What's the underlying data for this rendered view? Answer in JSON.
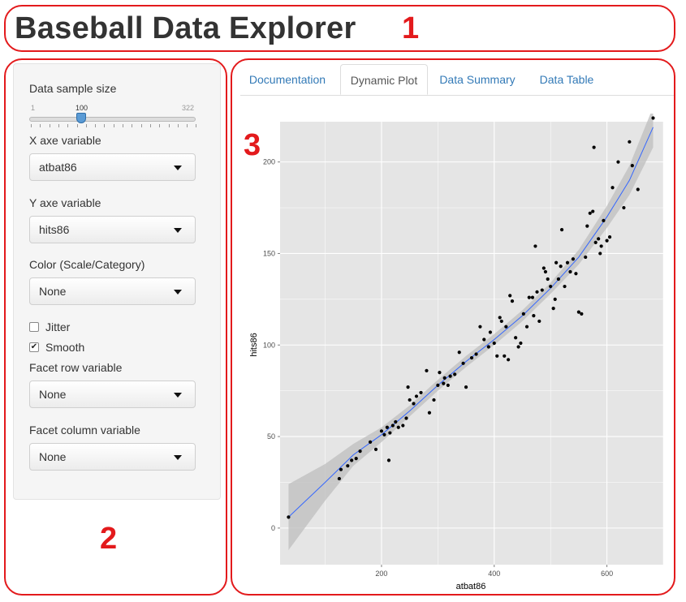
{
  "app": {
    "title": "Baseball Data Explorer"
  },
  "annotations": {
    "a1": "1",
    "a2": "2",
    "a3": "3"
  },
  "sidebar": {
    "sample_label": "Data sample size",
    "slider": {
      "min": "1",
      "value": "100",
      "max": "322"
    },
    "x_label": "X axe variable",
    "x_value": "atbat86",
    "y_label": "Y axe variable",
    "y_value": "hits86",
    "color_label": "Color (Scale/Category)",
    "color_value": "None",
    "jitter_label": "Jitter",
    "jitter_checked": false,
    "smooth_label": "Smooth",
    "smooth_checked": true,
    "facet_row_label": "Facet row variable",
    "facet_row_value": "None",
    "facet_col_label": "Facet column variable",
    "facet_col_value": "None"
  },
  "tabs": [
    {
      "label": "Documentation",
      "active": false
    },
    {
      "label": "Dynamic Plot",
      "active": true
    },
    {
      "label": "Data Summary",
      "active": false
    },
    {
      "label": "Data Table",
      "active": false
    }
  ],
  "colors": {
    "accent": "#e31a1c",
    "panel": "#e5e5e5",
    "smooth": "#3366ff",
    "ribbon": "#bdbdbd",
    "tab_link": "#337ab7"
  },
  "chart_data": {
    "type": "scatter",
    "xlabel": "atbat86",
    "ylabel": "hits86",
    "xlim": [
      20,
      700
    ],
    "ylim": [
      -20,
      222
    ],
    "x_ticks": [
      200,
      400,
      600
    ],
    "y_ticks": [
      0,
      50,
      100,
      150,
      200
    ],
    "grid": true,
    "points": [
      [
        35,
        6
      ],
      [
        125,
        27
      ],
      [
        128,
        32
      ],
      [
        140,
        34
      ],
      [
        147,
        37
      ],
      [
        155,
        38
      ],
      [
        162,
        42
      ],
      [
        180,
        47
      ],
      [
        190,
        43
      ],
      [
        200,
        53
      ],
      [
        205,
        51
      ],
      [
        210,
        55
      ],
      [
        213,
        37
      ],
      [
        215,
        52
      ],
      [
        220,
        56
      ],
      [
        225,
        58
      ],
      [
        230,
        55
      ],
      [
        238,
        56
      ],
      [
        244,
        60
      ],
      [
        247,
        77
      ],
      [
        250,
        70
      ],
      [
        257,
        68
      ],
      [
        262,
        72
      ],
      [
        270,
        74
      ],
      [
        280,
        86
      ],
      [
        285,
        63
      ],
      [
        293,
        70
      ],
      [
        300,
        78
      ],
      [
        303,
        85
      ],
      [
        310,
        79
      ],
      [
        312,
        82
      ],
      [
        318,
        78
      ],
      [
        322,
        83
      ],
      [
        330,
        84
      ],
      [
        338,
        96
      ],
      [
        345,
        90
      ],
      [
        350,
        77
      ],
      [
        360,
        93
      ],
      [
        368,
        95
      ],
      [
        375,
        110
      ],
      [
        382,
        103
      ],
      [
        390,
        99
      ],
      [
        393,
        107
      ],
      [
        400,
        101
      ],
      [
        405,
        94
      ],
      [
        410,
        115
      ],
      [
        413,
        113
      ],
      [
        418,
        94
      ],
      [
        421,
        110
      ],
      [
        425,
        92
      ],
      [
        428,
        127
      ],
      [
        432,
        124
      ],
      [
        438,
        104
      ],
      [
        443,
        99
      ],
      [
        447,
        101
      ],
      [
        452,
        117
      ],
      [
        458,
        110
      ],
      [
        462,
        126
      ],
      [
        468,
        126
      ],
      [
        470,
        116
      ],
      [
        473,
        154
      ],
      [
        476,
        129
      ],
      [
        480,
        113
      ],
      [
        485,
        130
      ],
      [
        488,
        142
      ],
      [
        491,
        140
      ],
      [
        495,
        136
      ],
      [
        500,
        132
      ],
      [
        505,
        120
      ],
      [
        508,
        125
      ],
      [
        510,
        145
      ],
      [
        514,
        136
      ],
      [
        518,
        143
      ],
      [
        520,
        163
      ],
      [
        525,
        132
      ],
      [
        530,
        145
      ],
      [
        535,
        140
      ],
      [
        540,
        147
      ],
      [
        545,
        139
      ],
      [
        550,
        118
      ],
      [
        555,
        117
      ],
      [
        562,
        148
      ],
      [
        565,
        165
      ],
      [
        570,
        172
      ],
      [
        575,
        173
      ],
      [
        577,
        208
      ],
      [
        580,
        156
      ],
      [
        585,
        158
      ],
      [
        588,
        150
      ],
      [
        590,
        154
      ],
      [
        594,
        168
      ],
      [
        600,
        157
      ],
      [
        605,
        159
      ],
      [
        610,
        186
      ],
      [
        620,
        200
      ],
      [
        630,
        175
      ],
      [
        640,
        211
      ],
      [
        645,
        198
      ],
      [
        655,
        185
      ],
      [
        682,
        224
      ]
    ],
    "smooth": [
      [
        35,
        6
      ],
      [
        100,
        25
      ],
      [
        150,
        40
      ],
      [
        200,
        51
      ],
      [
        250,
        64
      ],
      [
        300,
        78
      ],
      [
        350,
        91
      ],
      [
        400,
        103
      ],
      [
        450,
        116
      ],
      [
        500,
        131
      ],
      [
        550,
        148
      ],
      [
        600,
        170
      ],
      [
        640,
        190
      ],
      [
        682,
        219
      ]
    ],
    "ribbon_half_width": [
      [
        35,
        18
      ],
      [
        100,
        10
      ],
      [
        150,
        6
      ],
      [
        200,
        4
      ],
      [
        250,
        3
      ],
      [
        300,
        3
      ],
      [
        350,
        3
      ],
      [
        400,
        3
      ],
      [
        450,
        3
      ],
      [
        500,
        3
      ],
      [
        550,
        4
      ],
      [
        600,
        6
      ],
      [
        640,
        8
      ],
      [
        682,
        11
      ]
    ]
  }
}
